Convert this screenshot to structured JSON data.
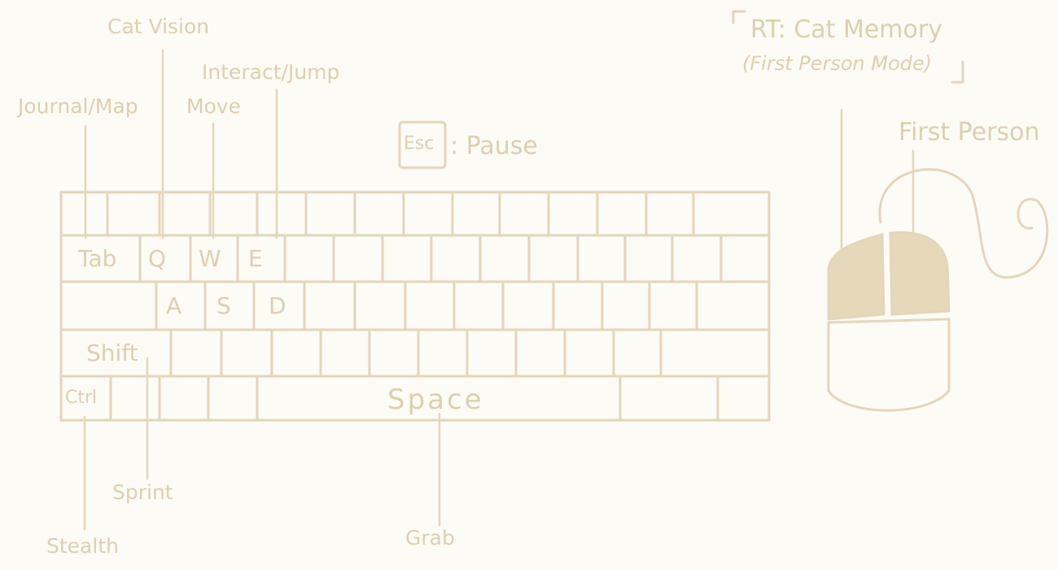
{
  "labels": {
    "cat_vision": "Cat Vision",
    "interact_jump": "Interact/Jump",
    "journal_map": "Journal/Map",
    "move": "Move",
    "pause": ": Pause",
    "rt_title": "RT: Cat Memory",
    "rt_sub": "(First Person Mode)",
    "first_person": "First Person",
    "sprint": "Sprint",
    "stealth": "Stealth",
    "grab": "Grab"
  },
  "keys": {
    "esc": "Esc",
    "tab": "Tab",
    "q": "Q",
    "w": "W",
    "e": "E",
    "a": "A",
    "s": "S",
    "d": "D",
    "shift": "Shift",
    "ctrl": "Ctrl",
    "space": "Space"
  },
  "colors": {
    "ink": "#e3d6bb",
    "text": "#dfcfae",
    "button_fill": "#e6d9b9",
    "background": "#fdfbf6"
  },
  "icons": [
    "keyboard-icon",
    "mouse-icon"
  ]
}
